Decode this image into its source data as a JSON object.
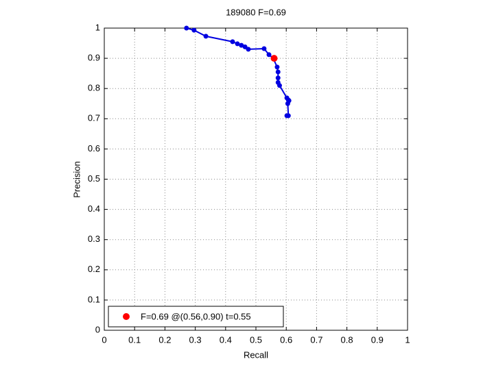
{
  "chart_data": {
    "type": "line",
    "title": "189080 F=0.69",
    "x_label": "Recall",
    "y_label": "Precision",
    "series": [
      {
        "color": "#0000e0",
        "x": [
          0.271,
          0.296,
          0.335,
          0.423,
          0.439,
          0.452,
          0.464,
          0.475,
          0.527,
          0.543,
          0.557,
          0.57,
          0.573,
          0.573,
          0.573,
          0.578,
          0.602,
          0.607,
          0.609,
          0.605,
          0.607,
          0.602
        ],
        "values": [
          1.0,
          0.993,
          0.973,
          0.955,
          0.948,
          0.943,
          0.938,
          0.93,
          0.932,
          0.912,
          0.9,
          0.871,
          0.855,
          0.835,
          0.82,
          0.81,
          0.769,
          0.762,
          0.76,
          0.75,
          0.71,
          0.71
        ]
      },
      {
        "name": "F=0.69 @(0.56,0.90) t=0.55",
        "color": "#ff0000",
        "x": [
          0.56
        ],
        "values": [
          0.9
        ]
      }
    ],
    "xlim": [
      0,
      1
    ],
    "ylim": [
      0,
      1
    ],
    "xticks": [
      0,
      0.1,
      0.2,
      0.3,
      0.4,
      0.5,
      0.6,
      0.7,
      0.8,
      0.9,
      1
    ],
    "yticks": [
      0,
      0.1,
      0.2,
      0.3,
      0.4,
      0.5,
      0.6,
      0.7,
      0.8,
      0.9,
      1
    ],
    "grid": true,
    "legend": "lower-left"
  }
}
